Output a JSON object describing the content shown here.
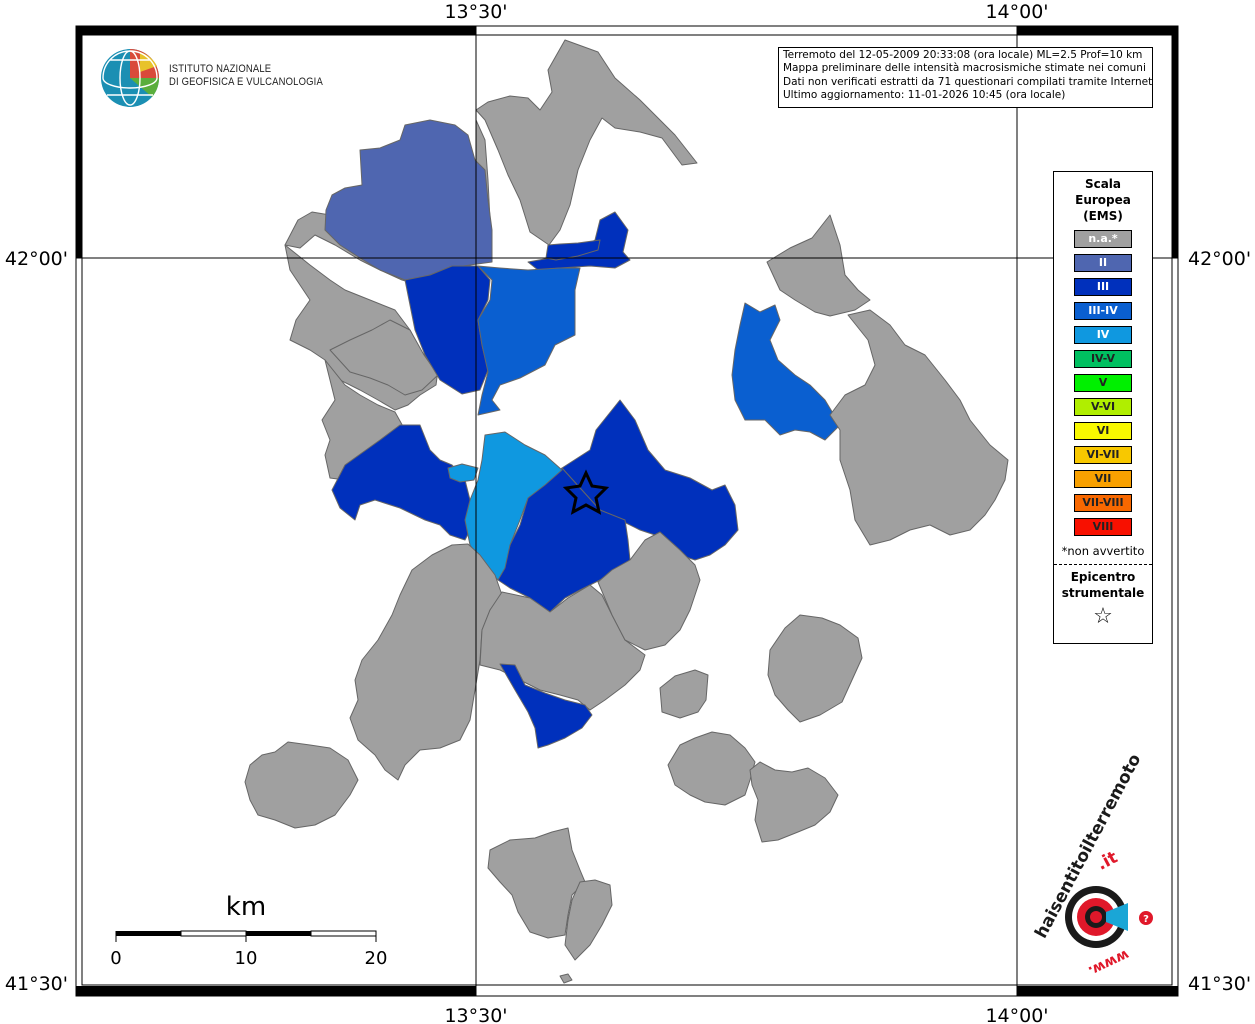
{
  "map": {
    "top_lon_labels": [
      "13°30'",
      "14°00'"
    ],
    "bottom_lon_labels": [
      "13°30'",
      "14°00'"
    ],
    "left_lat_labels": [
      "42°00'",
      "41°30'"
    ],
    "right_lat_labels": [
      "42°00'",
      "41°30'"
    ]
  },
  "info": {
    "line1": "Terremoto del 12-05-2009 20:33:08 (ora locale) ML=2.5 Prof=10 km",
    "line2": "Mappa preliminare delle intensità macrosismiche stimate nei comuni",
    "line3": "Dati non verificati estratti da 71 questionari compilati tramite Internet.",
    "line4": "Ultimo aggiornamento: 11-01-2026 10:45 (ora locale)"
  },
  "logo": {
    "line1": "ISTITUTO NAZIONALE",
    "line2": "DI GEOFISICA E VULCANOLOGIA"
  },
  "legend": {
    "title1": "Scala",
    "title2": "Europea",
    "title3": "(EMS)",
    "items": [
      {
        "label": "n.a.*",
        "color": "#a0a0a0"
      },
      {
        "label": "II",
        "color": "#4f66b0"
      },
      {
        "label": "III",
        "color": "#0030bc"
      },
      {
        "label": "III-IV",
        "color": "#0a5fd0"
      },
      {
        "label": "IV",
        "color": "#0f98e0"
      },
      {
        "label": "IV-V",
        "color": "#00c060"
      },
      {
        "label": "V",
        "color": "#00f000"
      },
      {
        "label": "V-VI",
        "color": "#b0ee00"
      },
      {
        "label": "VI",
        "color": "#f8f800"
      },
      {
        "label": "VI-VII",
        "color": "#f8c800"
      },
      {
        "label": "VII",
        "color": "#f8a000"
      },
      {
        "label": "VII-VIII",
        "color": "#f86800"
      },
      {
        "label": "VIII",
        "color": "#f81000"
      }
    ],
    "note": "*non avvertito",
    "epi1": "Epicentro",
    "epi2": "strumentale",
    "star": "☆"
  },
  "scale": {
    "unit": "km",
    "ticks": [
      "0",
      "10",
      "20"
    ]
  },
  "badge": {
    "text_main": "haisentitoilterremoto",
    "text_it": ".it",
    "text_www": "www.",
    "question": "?"
  }
}
